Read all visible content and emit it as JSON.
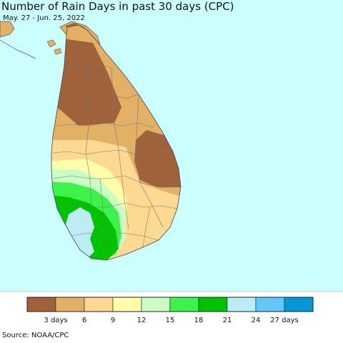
{
  "title": "Number of Rain Days in past 30 days (CPC)",
  "subtitle": "May. 27 - Jun. 25, 2022",
  "source": "Source: NOAA/CPC",
  "colors": {
    "ocean": "#ccffff",
    "land_outline": "#555555"
  },
  "legend": {
    "swatches": [
      "#a0623a",
      "#e3b165",
      "#fdd992",
      "#fefeab",
      "#c9fdc4",
      "#3df24a",
      "#00c300",
      "#bdebf6",
      "#62c7f8",
      "#0498d7"
    ],
    "ticks": [
      "3 days",
      "6",
      "9",
      "12",
      "15",
      "18",
      "21",
      "24",
      "27 days"
    ]
  }
}
